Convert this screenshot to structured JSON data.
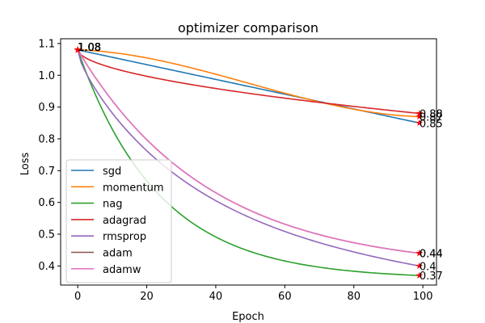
{
  "chart_data": {
    "type": "line",
    "title": "optimizer comparison",
    "xlabel": "Epoch",
    "ylabel": "Loss",
    "xlim": [
      -4.95,
      103.95
    ],
    "ylim": [
      0.34,
      1.115
    ],
    "xticks": [
      0,
      20,
      40,
      60,
      80,
      100
    ],
    "yticks": [
      0.4,
      0.5,
      0.6,
      0.7,
      0.8,
      0.9,
      1.0,
      1.1
    ],
    "xtick_labels": [
      "0",
      "20",
      "40",
      "60",
      "80",
      "100"
    ],
    "ytick_labels": [
      "0.4",
      "0.5",
      "0.6",
      "0.7",
      "0.8",
      "0.9",
      "1.0",
      "1.1"
    ],
    "grid": false,
    "legend_position": "lower-left",
    "start_marker_label": "1.08",
    "series": [
      {
        "name": "sgd",
        "color": "#1f77b4",
        "start": 1.08,
        "end": 0.85,
        "end_label": "0.85",
        "curve": "linear"
      },
      {
        "name": "momentum",
        "color": "#ff7f0e",
        "start": 1.08,
        "end": 0.87,
        "end_label": "0.87",
        "curve": "s-shaped"
      },
      {
        "name": "nag",
        "color": "#2ca02c",
        "start": 1.08,
        "end": 0.37,
        "end_label": "0.37",
        "curve": "exp-decay"
      },
      {
        "name": "adagrad",
        "color": "#d62728",
        "start": 1.08,
        "end": 0.88,
        "end_label": "0.88",
        "curve": "sqrt-decay"
      },
      {
        "name": "rmsprop",
        "color": "#9467bd",
        "start": 1.08,
        "end": 0.4,
        "end_label": "0.4",
        "curve": "fast-decay"
      },
      {
        "name": "adam",
        "color": "#8c564b",
        "start": 1.08,
        "end": 0.44,
        "end_label": "0.44",
        "curve": "decay"
      },
      {
        "name": "adamw",
        "color": "#e377c2",
        "start": 1.08,
        "end": 0.44,
        "end_label": "0.44",
        "curve": "decay"
      }
    ],
    "x_points": [
      0,
      99
    ],
    "marker": "star",
    "marker_color": "#ff0000"
  }
}
